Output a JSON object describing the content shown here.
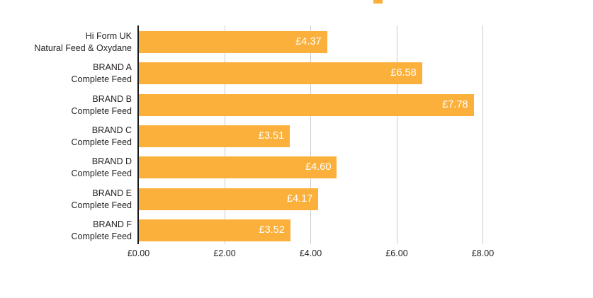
{
  "page": {
    "background_color": "#ffffff"
  },
  "legend": {
    "swatch_color": "#fbb03b"
  },
  "chart_data": {
    "type": "bar",
    "orientation": "horizontal",
    "title": "",
    "xlabel": "",
    "ylabel": "",
    "xlim": [
      0,
      8
    ],
    "grid": true,
    "gridline_color": "#cccccc",
    "axis_color": "#1a1a1a",
    "bar_color": "#fbb03b",
    "value_label_color": "#ffffff",
    "x_tick_values": [
      0,
      2,
      4,
      6,
      8
    ],
    "x_tick_labels": [
      "£0.00",
      "£2.00",
      "£4.00",
      "£6.00",
      "£8.00"
    ],
    "rows": [
      {
        "label_line1": "Hi Form UK",
        "label_line2": "Natural Feed & Oxydane",
        "value": 4.37,
        "value_label": "£4.37"
      },
      {
        "label_line1": "BRAND A",
        "label_line2": "Complete Feed",
        "value": 6.58,
        "value_label": "£6.58"
      },
      {
        "label_line1": "BRAND B",
        "label_line2": "Complete Feed",
        "value": 7.78,
        "value_label": "£7.78"
      },
      {
        "label_line1": "BRAND C",
        "label_line2": "Complete Feed",
        "value": 3.51,
        "value_label": "£3.51"
      },
      {
        "label_line1": "BRAND D",
        "label_line2": "Complete Feed",
        "value": 4.6,
        "value_label": "£4.60"
      },
      {
        "label_line1": "BRAND E",
        "label_line2": "Complete Feed",
        "value": 4.17,
        "value_label": "£4.17"
      },
      {
        "label_line1": "BRAND F",
        "label_line2": "Complete Feed",
        "value": 3.52,
        "value_label": "£3.52"
      }
    ]
  }
}
